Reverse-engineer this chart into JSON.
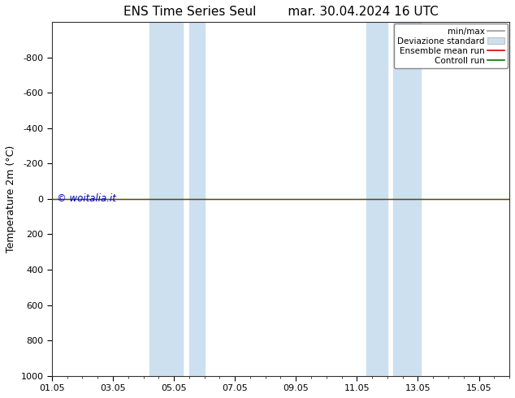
{
  "title": "ENS Time Series Seul",
  "subtitle": "mar. 30.04.2024 16 UTC",
  "ylabel": "Temperature 2m (°C)",
  "ylim_top": -1000,
  "ylim_bottom": 1000,
  "yticks": [
    -800,
    -600,
    -400,
    -200,
    0,
    200,
    400,
    600,
    800,
    1000
  ],
  "xlim_min": 0,
  "xlim_max": 15,
  "xtick_labels": [
    "01.05",
    "03.05",
    "05.05",
    "07.05",
    "09.05",
    "11.05",
    "13.05",
    "15.05"
  ],
  "xtick_positions": [
    0,
    2,
    4,
    6,
    8,
    10,
    12,
    14
  ],
  "shaded_regions": [
    {
      "xstart": 3.2,
      "xend": 4.3
    },
    {
      "xstart": 4.5,
      "xend": 5.0
    },
    {
      "xstart": 10.3,
      "xend": 11.0
    },
    {
      "xstart": 11.2,
      "xend": 12.1
    }
  ],
  "shade_color": "#cce0f0",
  "line_color_red": "#dd0000",
  "line_color_green": "#007700",
  "line_color_gray": "#999999",
  "background_color": "#ffffff",
  "watermark": "© woitalia.it",
  "watermark_color": "#0000bb",
  "title_fontsize": 11,
  "tick_fontsize": 8,
  "label_fontsize": 9,
  "legend_fontsize": 7.5
}
